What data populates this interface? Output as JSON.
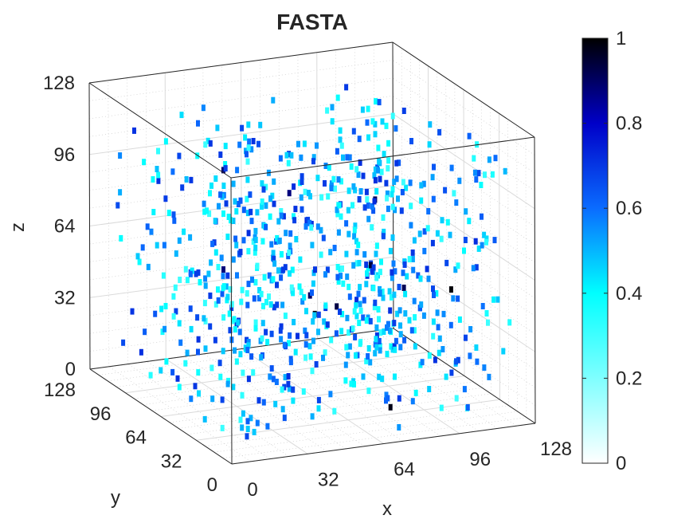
{
  "chart_data": {
    "type": "scatter3d",
    "title": "FASTA",
    "xlabel": "x",
    "ylabel": "y",
    "zlabel": "z",
    "xlim": [
      0,
      128
    ],
    "ylim": [
      0,
      128
    ],
    "zlim": [
      0,
      128
    ],
    "xticks": [
      "0",
      "32",
      "64",
      "96",
      "128"
    ],
    "yticks": [
      "0",
      "32",
      "64",
      "96",
      "128"
    ],
    "zticks": [
      "0",
      "32",
      "64",
      "96",
      "128"
    ],
    "grid": true,
    "box": true,
    "colormap": {
      "name": "inverted-jet-like (white → cyan → blue → black)",
      "stops": [
        "#ffffff",
        "#00ffff",
        "#0060ff",
        "#0000b0",
        "#000000"
      ],
      "range": [
        0,
        1
      ],
      "ticks": [
        "0",
        "0.2",
        "0.4",
        "0.6",
        "0.8",
        "1"
      ]
    },
    "points_description": "~800 scattered voxels filling the volume roughly x,y in [8,120], z in [0,112]; intensities mostly 0.3–0.7, a few near 0.9–1.0",
    "num_points": 800,
    "intensity_range": [
      0.25,
      1.0
    ]
  }
}
